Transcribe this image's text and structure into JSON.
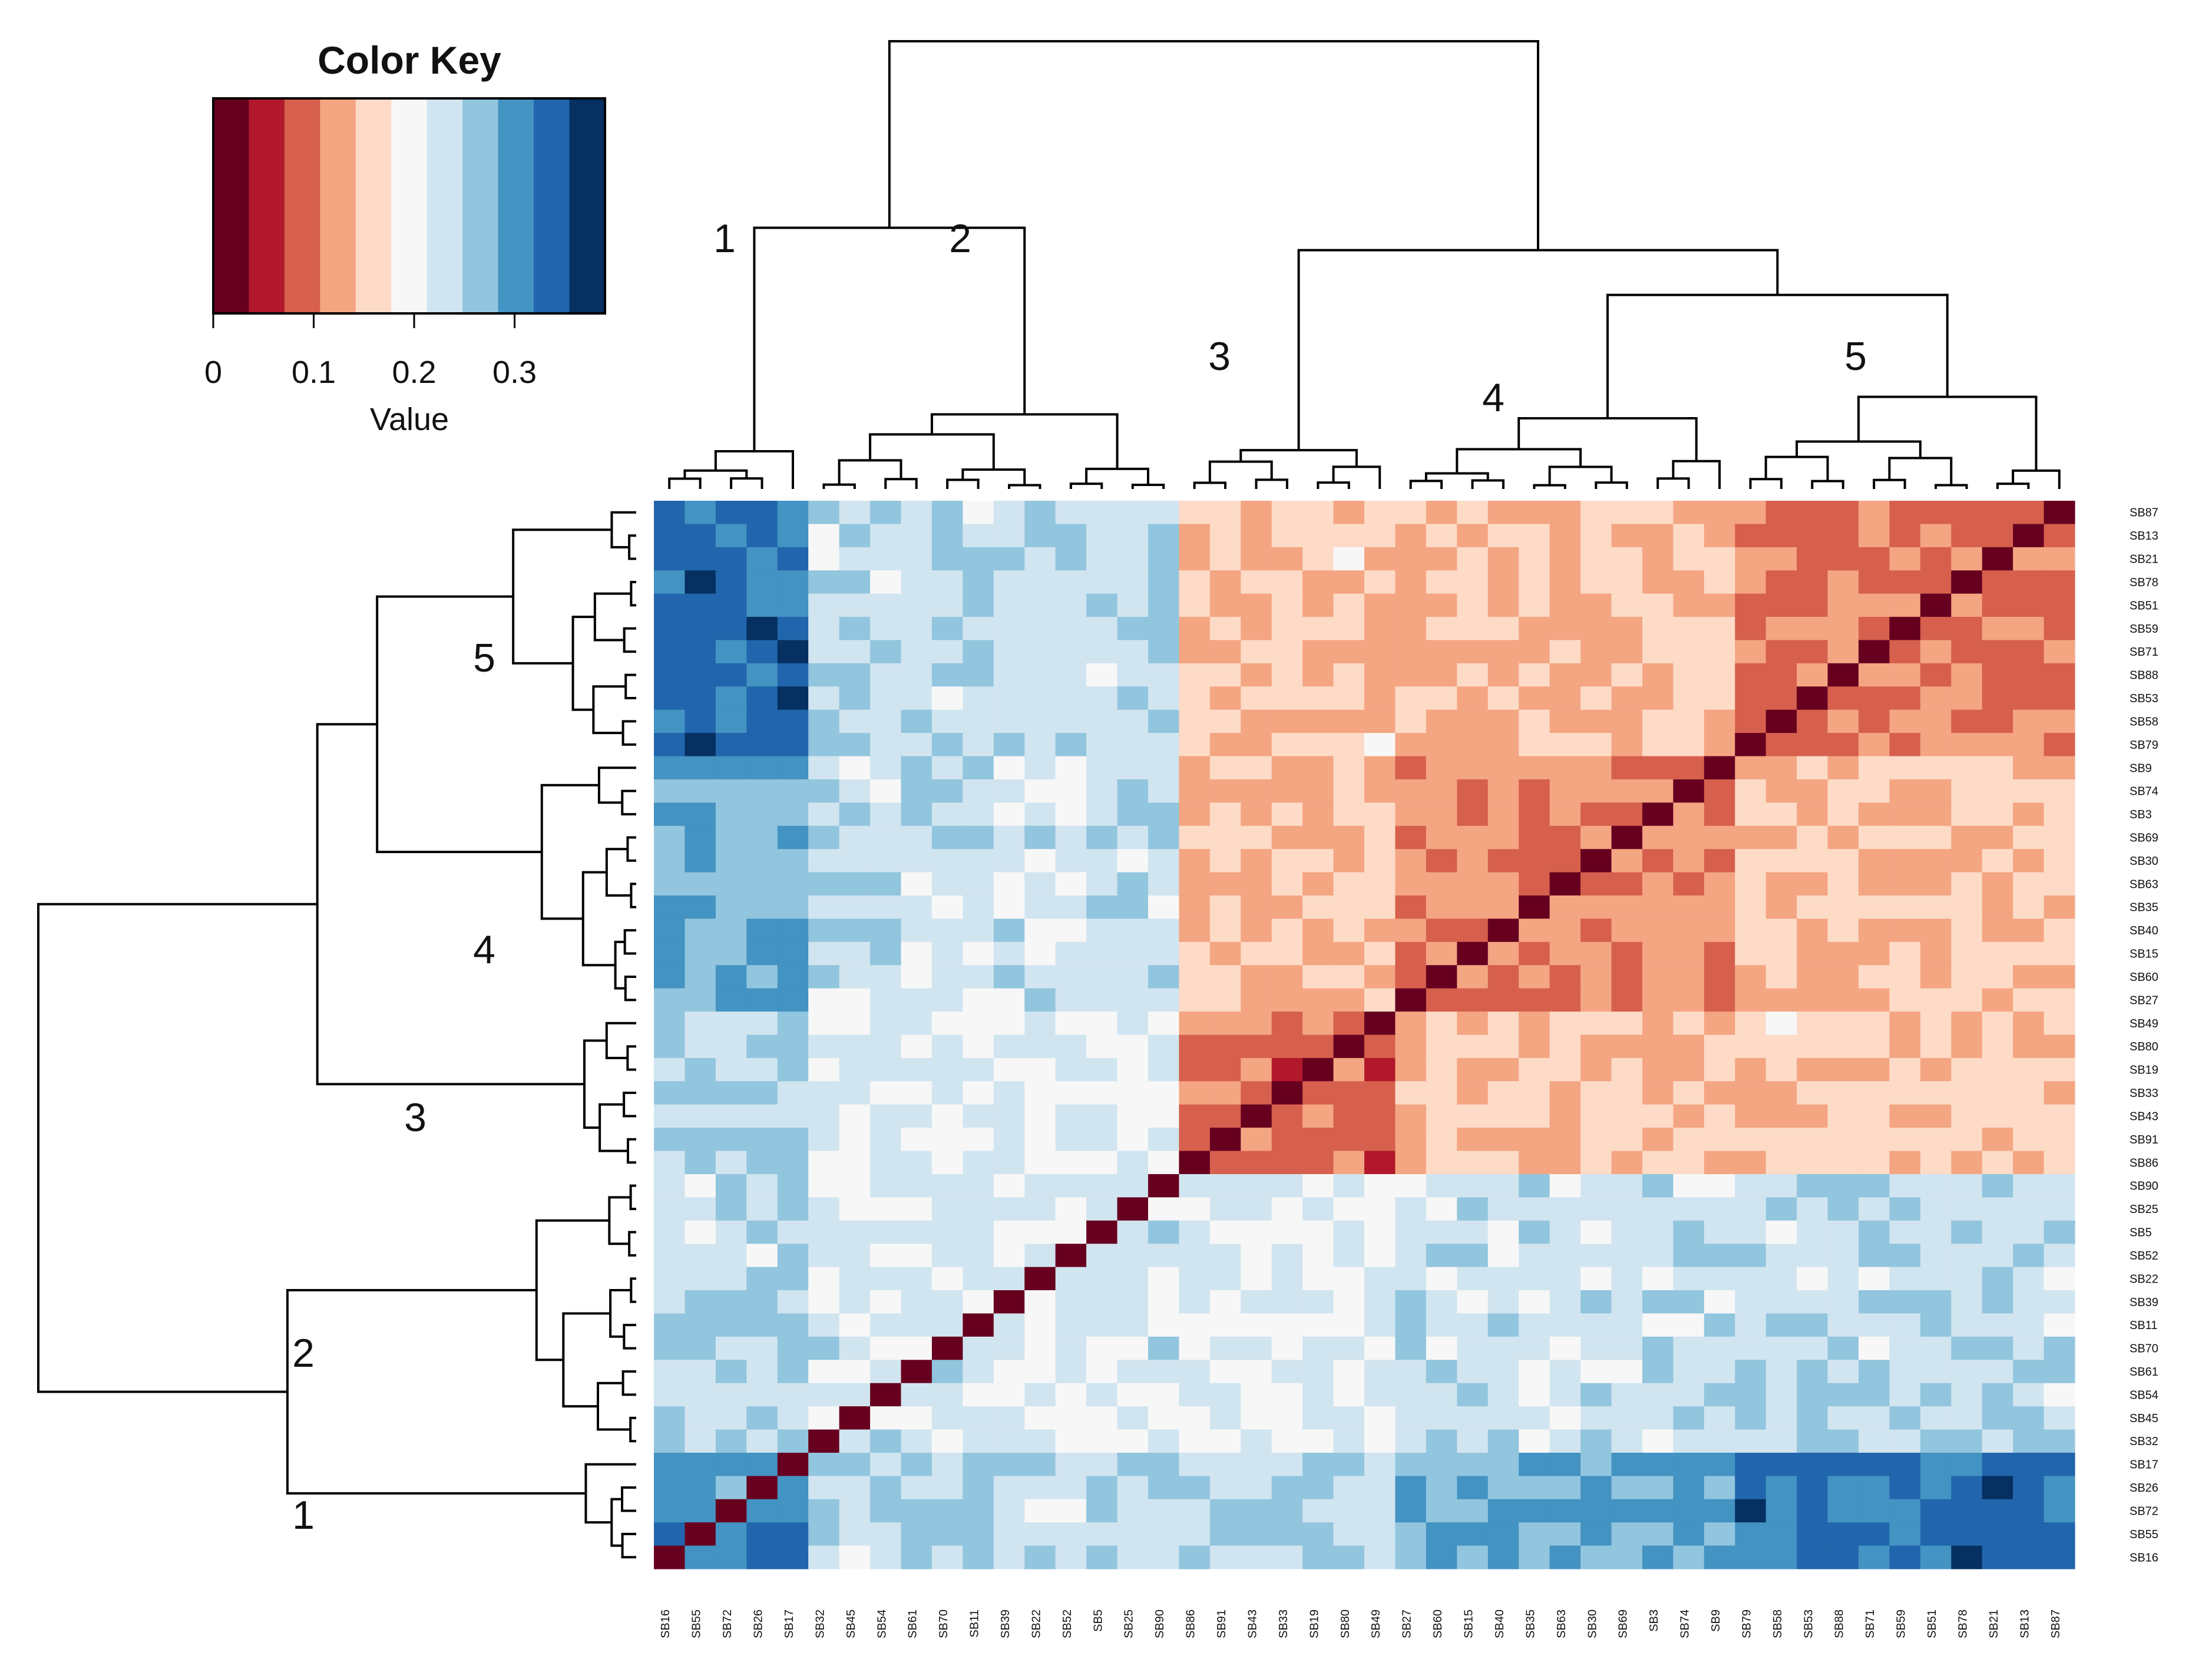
{
  "chart_data": {
    "type": "heatmap",
    "title": "",
    "color_key": {
      "title": "Color Key",
      "xlabel": "Value",
      "ticks": [
        "0",
        "0.1",
        "0.2",
        "0.3"
      ],
      "tick_values": [
        0,
        0.1,
        0.2,
        0.3
      ],
      "range": [
        0,
        0.39
      ],
      "colors": [
        "#67001F",
        "#B2182B",
        "#D6604D",
        "#F4A582",
        "#FDDBC7",
        "#F7F7F7",
        "#D1E5F0",
        "#92C5DE",
        "#4393C3",
        "#2166AC",
        "#053061"
      ]
    },
    "rows_top_to_bottom": [
      "SB87",
      "SB13",
      "SB21",
      "SB78",
      "SB51",
      "SB59",
      "SB71",
      "SB88",
      "SB53",
      "SB58",
      "SB79",
      "SB9",
      "SB74",
      "SB3",
      "SB69",
      "SB30",
      "SB63",
      "SB35",
      "SB40",
      "SB15",
      "SB60",
      "SB27",
      "SB49",
      "SB80",
      "SB19",
      "SB33",
      "SB43",
      "SB91",
      "SB86",
      "SB90",
      "SB25",
      "SB5",
      "SB52",
      "SB22",
      "SB39",
      "SB11",
      "SB70",
      "SB61",
      "SB54",
      "SB45",
      "SB32",
      "SB17",
      "SB26",
      "SB72",
      "SB55",
      "SB16"
    ],
    "columns_left_to_right": [
      "SB16",
      "SB55",
      "SB72",
      "SB26",
      "SB17",
      "SB32",
      "SB45",
      "SB54",
      "SB61",
      "SB70",
      "SB11",
      "SB39",
      "SB22",
      "SB52",
      "SB5",
      "SB25",
      "SB90",
      "SB86",
      "SB91",
      "SB43",
      "SB33",
      "SB19",
      "SB80",
      "SB49",
      "SB27",
      "SB60",
      "SB15",
      "SB40",
      "SB35",
      "SB63",
      "SB30",
      "SB69",
      "SB3",
      "SB74",
      "SB9",
      "SB79",
      "SB58",
      "SB53",
      "SB88",
      "SB71",
      "SB59",
      "SB51",
      "SB78",
      "SB21",
      "SB13",
      "SB87"
    ],
    "clusters": [
      {
        "label": "1",
        "members": [
          "SB16",
          "SB55",
          "SB72",
          "SB26",
          "SB17"
        ]
      },
      {
        "label": "2",
        "members": [
          "SB32",
          "SB45",
          "SB54",
          "SB61",
          "SB70",
          "SB11",
          "SB39",
          "SB22",
          "SB52",
          "SB5",
          "SB25",
          "SB90"
        ]
      },
      {
        "label": "3",
        "members": [
          "SB86",
          "SB91",
          "SB43",
          "SB33",
          "SB19",
          "SB80",
          "SB49"
        ]
      },
      {
        "label": "4",
        "members": [
          "SB27",
          "SB60",
          "SB15",
          "SB40",
          "SB35",
          "SB63",
          "SB30",
          "SB69",
          "SB3",
          "SB74",
          "SB9"
        ]
      },
      {
        "label": "5",
        "members": [
          "SB79",
          "SB58",
          "SB53",
          "SB88",
          "SB71",
          "SB59",
          "SB51",
          "SB78",
          "SB21",
          "SB13",
          "SB87"
        ]
      }
    ],
    "cluster_mean_values": [
      [
        0.31,
        0.24,
        0.25,
        0.28,
        0.33
      ],
      [
        0.24,
        0.22,
        0.21,
        0.23,
        0.24
      ],
      [
        0.25,
        0.21,
        0.09,
        0.14,
        0.15
      ],
      [
        0.28,
        0.23,
        0.14,
        0.11,
        0.14
      ],
      [
        0.33,
        0.24,
        0.15,
        0.14,
        0.1
      ]
    ],
    "diagonal_value": 0
  }
}
